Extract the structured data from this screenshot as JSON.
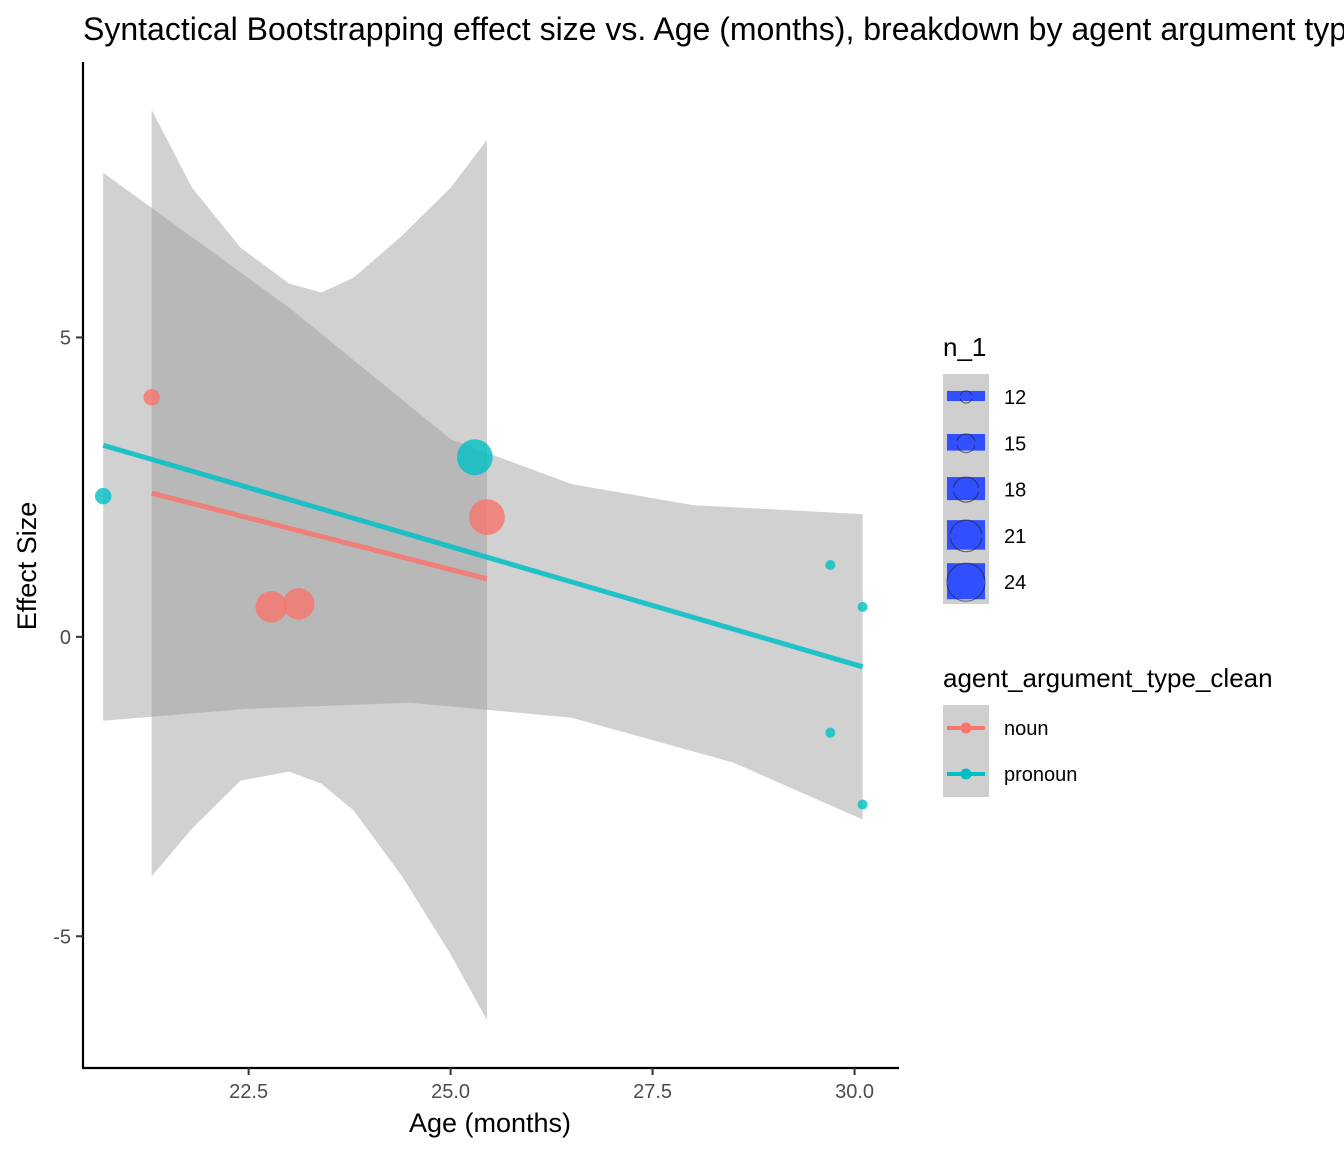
{
  "chart_data": {
    "type": "scatter",
    "title": "Syntactical Bootstrapping effect size vs. Age (months), breakdown by agent argument type",
    "xlabel": "Age (months)",
    "ylabel": "Effect Size",
    "xlim": [
      20.45,
      30.55
    ],
    "ylim": [
      -7.2,
      9.6
    ],
    "x_ticks": [
      22.5,
      25.0,
      27.5,
      30.0
    ],
    "x_tick_labels": [
      "22.5",
      "25.0",
      "27.5",
      "30.0"
    ],
    "y_ticks": [
      -5,
      0,
      5
    ],
    "y_tick_labels": [
      "-5",
      "0",
      "5"
    ],
    "grid": false,
    "legend_position": "right",
    "colors": {
      "noun": "#F8766D",
      "pronoun": "#00BFC4",
      "band": "#999999",
      "size_key": "#3050FF"
    },
    "size_legend": {
      "title": "n_1",
      "values": [
        12,
        15,
        18,
        21,
        24
      ]
    },
    "color_legend": {
      "title": "agent_argument_type_clean",
      "entries": [
        "noun",
        "pronoun"
      ]
    },
    "series": [
      {
        "name": "noun",
        "points": [
          {
            "x": 21.3,
            "y": 4.0,
            "n": 14
          },
          {
            "x": 22.78,
            "y": 0.5,
            "n": 21
          },
          {
            "x": 23.12,
            "y": 0.55,
            "n": 21
          },
          {
            "x": 25.45,
            "y": 2.0,
            "n": 23
          }
        ],
        "fit": {
          "x": [
            21.3,
            25.45
          ],
          "y": [
            2.4,
            0.97
          ]
        },
        "ci_upper": [
          [
            21.3,
            8.8
          ],
          [
            21.8,
            7.5
          ],
          [
            22.4,
            6.5
          ],
          [
            23.0,
            5.9
          ],
          [
            23.4,
            5.75
          ],
          [
            23.8,
            6.0
          ],
          [
            24.4,
            6.7
          ],
          [
            25.0,
            7.5
          ],
          [
            25.45,
            8.3
          ]
        ],
        "ci_lower": [
          [
            21.3,
            -4.0
          ],
          [
            21.8,
            -3.2
          ],
          [
            22.4,
            -2.4
          ],
          [
            23.0,
            -2.25
          ],
          [
            23.4,
            -2.45
          ],
          [
            23.8,
            -2.9
          ],
          [
            24.4,
            -4.0
          ],
          [
            25.0,
            -5.3
          ],
          [
            25.45,
            -6.4
          ]
        ]
      },
      {
        "name": "pronoun",
        "points": [
          {
            "x": 20.7,
            "y": 2.35,
            "n": 14
          },
          {
            "x": 25.3,
            "y": 3.0,
            "n": 23
          },
          {
            "x": 29.7,
            "y": 1.2,
            "n": 11
          },
          {
            "x": 30.1,
            "y": 0.5,
            "n": 11
          },
          {
            "x": 29.7,
            "y": -1.6,
            "n": 11
          },
          {
            "x": 30.1,
            "y": -2.8,
            "n": 11
          }
        ],
        "fit": {
          "x": [
            20.7,
            30.1
          ],
          "y": [
            3.2,
            -0.5
          ]
        },
        "ci_upper": [
          [
            20.7,
            7.75
          ],
          [
            23.0,
            5.5
          ],
          [
            25.0,
            3.3
          ],
          [
            26.5,
            2.55
          ],
          [
            28.0,
            2.2
          ],
          [
            30.1,
            2.05
          ]
        ],
        "ci_lower": [
          [
            20.7,
            -1.4
          ],
          [
            22.5,
            -1.2
          ],
          [
            24.5,
            -1.1
          ],
          [
            26.5,
            -1.35
          ],
          [
            28.5,
            -2.1
          ],
          [
            30.1,
            -3.05
          ]
        ]
      }
    ]
  }
}
